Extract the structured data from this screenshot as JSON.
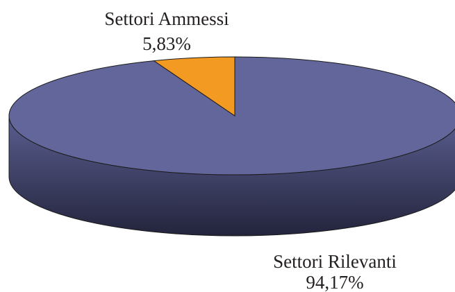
{
  "chart_data": {
    "type": "pie",
    "categories": [
      "Settori Rilevanti",
      "Settori Ammessi"
    ],
    "values": [
      94.17,
      5.83
    ],
    "value_labels": [
      "94,17%",
      "5,83%"
    ],
    "colors": [
      "#62669a",
      "#f39a23"
    ]
  }
}
